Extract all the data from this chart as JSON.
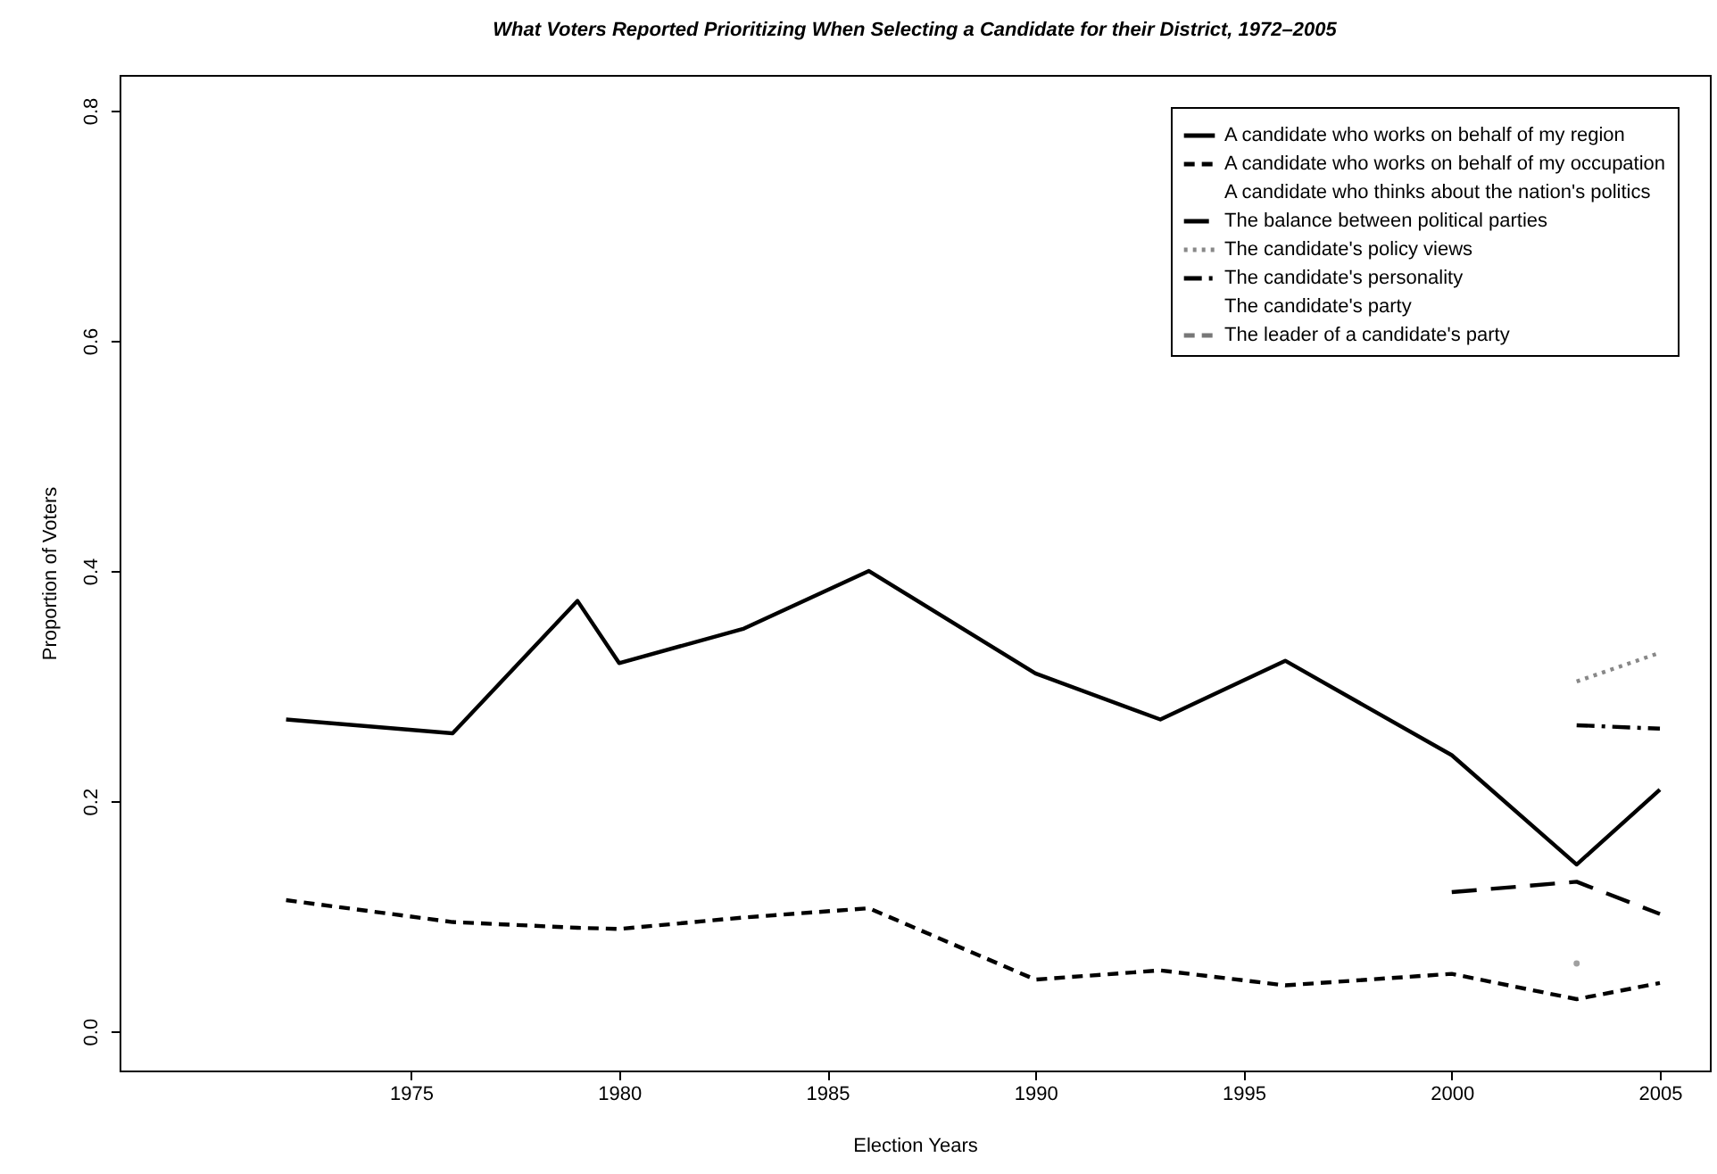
{
  "chart_data": {
    "type": "line",
    "title": "What Voters Reported Prioritizing When Selecting a Candidate for their District, 1972–2005",
    "xlabel": "Election Years",
    "ylabel": "Proportion of Voters",
    "xlim": [
      1968,
      2006.2
    ],
    "xticks": [
      1975,
      1980,
      1985,
      1990,
      1995,
      2000,
      2005
    ],
    "ylim": [
      -0.034,
      0.831
    ],
    "yticks": [
      {
        "value": 0,
        "label": "0.0"
      },
      {
        "value": 0.2,
        "label": "0.2"
      },
      {
        "value": 0.4,
        "label": "0.4"
      },
      {
        "value": 0.6,
        "label": "0.6"
      },
      {
        "value": 0.8,
        "label": "0.8"
      }
    ],
    "legend": "top right",
    "grid": false,
    "series": [
      {
        "name": "A candidate who works on behalf of my region",
        "color": "#000000",
        "line_style": "solid",
        "x": [
          1972,
          1976,
          1979,
          1980,
          1983,
          1986,
          1990,
          1993,
          1996,
          2000,
          2003,
          2005
        ],
        "values": [
          0.271,
          0.259,
          0.374,
          0.32,
          0.35,
          0.4,
          0.311,
          0.271,
          0.322,
          0.24,
          0.145,
          0.21
        ]
      },
      {
        "name": "A candidate who works on behalf of my occupation",
        "color": "#000000",
        "line_style": "dashed",
        "x": [
          1972,
          1976,
          1979,
          1980,
          1983,
          1986,
          1990,
          1993,
          1996,
          2000,
          2003,
          2005
        ],
        "values": [
          0.114,
          0.095,
          0.09,
          0.089,
          0.099,
          0.107,
          0.045,
          0.053,
          0.04,
          0.05,
          0.028,
          0.042
        ]
      },
      {
        "name": "A candidate who thinks about the nation's politics"
      },
      {
        "name": "The balance between political parties",
        "color": "#000000",
        "line_style": "longdash",
        "x": [
          2000,
          2003,
          2005
        ],
        "values": [
          0.121,
          0.13,
          0.102
        ]
      },
      {
        "name": "The candidate's policy views",
        "color": "#888888",
        "line_style": "dotted",
        "x": [
          2003,
          2005
        ],
        "values": [
          0.304,
          0.329
        ]
      },
      {
        "name": "The candidate's personality",
        "color": "#000000",
        "line_style": "dashdot",
        "x": [
          2003,
          2005
        ],
        "values": [
          0.266,
          0.263
        ]
      },
      {
        "name": "The candidate's party"
      },
      {
        "name": "The leader of a candidate's party",
        "color": "#777777",
        "line_style": "dashed",
        "marker": "circle",
        "x": [
          2003
        ],
        "values": [
          0.059
        ]
      }
    ]
  }
}
